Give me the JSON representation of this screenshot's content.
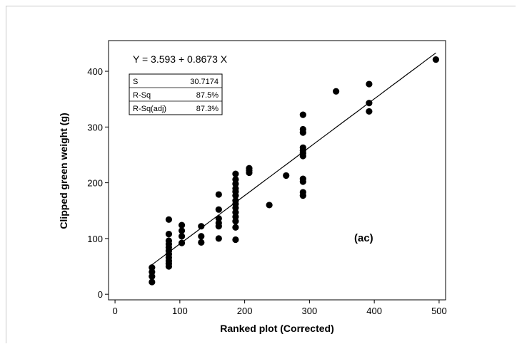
{
  "chart_data": {
    "type": "scatter",
    "title": "",
    "xlabel": "Ranked plot (Corrected)",
    "ylabel": "Clipped green weight (g)",
    "xlim": [
      -10,
      510
    ],
    "ylim": [
      -10,
      455
    ],
    "xticks": [
      "0",
      "100",
      "200",
      "300",
      "400",
      "500"
    ],
    "yticks": [
      "0",
      "100",
      "200",
      "300",
      "400"
    ],
    "equation": "Y =  3.593 + 0.8673 X",
    "stats": [
      {
        "label": "S",
        "value": "30.7174"
      },
      {
        "label": "R-Sq",
        "value": "87.5%"
      },
      {
        "label": "R-Sq(adj)",
        "value": "87.3%"
      }
    ],
    "panel_label": "(ac)",
    "grid": false,
    "fit_line": {
      "intercept": 3.593,
      "slope": 0.8673,
      "x": [
        57,
        495
      ]
    },
    "points": [
      [
        57,
        22
      ],
      [
        57,
        32
      ],
      [
        57,
        40
      ],
      [
        57,
        48
      ],
      [
        83,
        50
      ],
      [
        83,
        55
      ],
      [
        83,
        60
      ],
      [
        83,
        66
      ],
      [
        83,
        72
      ],
      [
        83,
        78
      ],
      [
        83,
        84
      ],
      [
        83,
        90
      ],
      [
        83,
        96
      ],
      [
        83,
        108
      ],
      [
        83,
        134
      ],
      [
        103,
        92
      ],
      [
        103,
        104
      ],
      [
        103,
        114
      ],
      [
        103,
        124
      ],
      [
        133,
        93
      ],
      [
        133,
        104
      ],
      [
        133,
        122
      ],
      [
        160,
        100
      ],
      [
        160,
        122
      ],
      [
        160,
        128
      ],
      [
        160,
        136
      ],
      [
        160,
        152
      ],
      [
        160,
        179
      ],
      [
        186,
        98
      ],
      [
        186,
        120
      ],
      [
        186,
        131
      ],
      [
        186,
        139
      ],
      [
        186,
        147
      ],
      [
        186,
        155
      ],
      [
        186,
        162
      ],
      [
        186,
        168
      ],
      [
        186,
        177
      ],
      [
        186,
        184
      ],
      [
        186,
        190
      ],
      [
        186,
        198
      ],
      [
        186,
        206
      ],
      [
        186,
        216
      ],
      [
        207,
        218
      ],
      [
        207,
        222
      ],
      [
        207,
        226
      ],
      [
        238,
        160
      ],
      [
        264,
        213
      ],
      [
        290,
        177
      ],
      [
        290,
        183
      ],
      [
        290,
        202
      ],
      [
        290,
        207
      ],
      [
        290,
        248
      ],
      [
        290,
        253
      ],
      [
        290,
        258
      ],
      [
        290,
        263
      ],
      [
        290,
        290
      ],
      [
        290,
        296
      ],
      [
        290,
        322
      ],
      [
        341,
        364
      ],
      [
        392,
        328
      ],
      [
        392,
        343
      ],
      [
        392,
        377
      ],
      [
        495,
        421
      ]
    ]
  }
}
